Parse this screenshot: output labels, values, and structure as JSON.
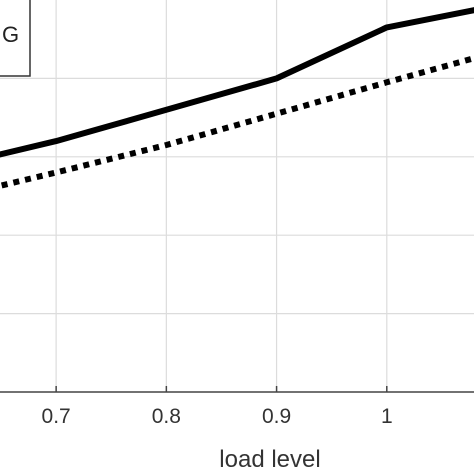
{
  "chart_data": {
    "type": "line",
    "xlabel": "load level",
    "ylabel": "",
    "title": "",
    "x_ticks": [
      "0.7",
      "0.8",
      "0.9",
      "1",
      "1."
    ],
    "xlim": [
      0.64,
      1.09
    ],
    "ylim": [
      0,
      1
    ],
    "grid": true,
    "legend": {
      "placement": "top-left",
      "visible_text": "G"
    },
    "series": [
      {
        "style": "solid",
        "x": [
          0.64,
          0.7,
          0.8,
          0.9,
          1.0,
          1.09
        ],
        "y": [
          0.6,
          0.64,
          0.72,
          0.8,
          0.93,
          0.98
        ]
      },
      {
        "style": "dotted",
        "x": [
          0.64,
          0.7,
          0.8,
          0.9,
          1.0,
          1.09
        ],
        "y": [
          0.52,
          0.56,
          0.63,
          0.71,
          0.79,
          0.86
        ]
      }
    ],
    "colors": {
      "line": "#000000",
      "grid": "#dcdcdc",
      "axis": "#444444"
    }
  }
}
